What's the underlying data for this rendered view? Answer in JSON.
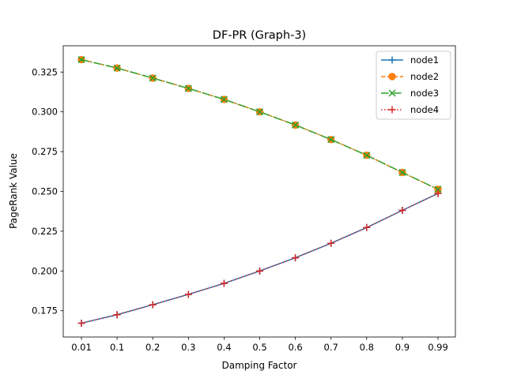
{
  "chart_data": {
    "type": "line",
    "title": "DF-PR (Graph-3)",
    "xlabel": "Damping Factor",
    "ylabel": "PageRank Value",
    "categories": [
      "0.01",
      "0.1",
      "0.2",
      "0.3",
      "0.4",
      "0.5",
      "0.6",
      "0.7",
      "0.8",
      "0.9",
      "0.99"
    ],
    "ylim": [
      0.1585,
      0.3415
    ],
    "yticks": [
      "0.175",
      "0.200",
      "0.225",
      "0.250",
      "0.275",
      "0.300",
      "0.325"
    ],
    "ytick_values": [
      0.175,
      0.2,
      0.225,
      0.25,
      0.275,
      0.3,
      0.325
    ],
    "grid": false,
    "legend_position": "upper right",
    "series": [
      {
        "name": "node1",
        "color": "#1f77b4",
        "line_style": "solid",
        "marker": "plus",
        "values": [
          0.1672,
          0.1725,
          0.1788,
          0.1853,
          0.1922,
          0.2,
          0.2083,
          0.2174,
          0.2273,
          0.2381,
          0.2487
        ]
      },
      {
        "name": "node2",
        "color": "#ff7f0e",
        "line_style": "dashed",
        "marker": "circle",
        "values": [
          0.3328,
          0.3275,
          0.3212,
          0.3147,
          0.3078,
          0.3,
          0.2917,
          0.2826,
          0.2727,
          0.2619,
          0.2513
        ]
      },
      {
        "name": "node3",
        "color": "#2ca02c",
        "line_style": "dashdot",
        "marker": "x",
        "values": [
          0.3328,
          0.3275,
          0.3212,
          0.3147,
          0.3078,
          0.3,
          0.2917,
          0.2826,
          0.2727,
          0.2619,
          0.2513
        ]
      },
      {
        "name": "node4",
        "color": "#d62728",
        "line_style": "dotted",
        "marker": "plus",
        "values": [
          0.1672,
          0.1725,
          0.1788,
          0.1853,
          0.1922,
          0.2,
          0.2083,
          0.2174,
          0.2273,
          0.2381,
          0.2487
        ]
      }
    ]
  }
}
